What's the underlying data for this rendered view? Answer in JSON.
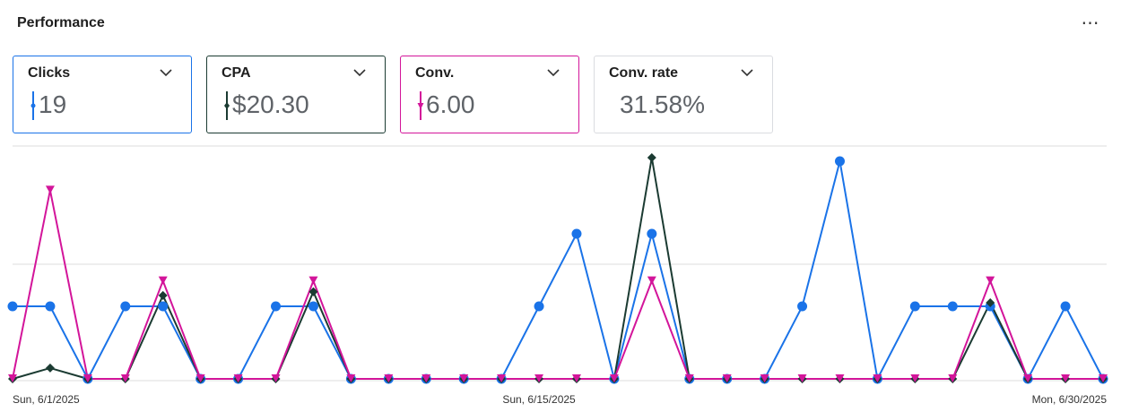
{
  "header": {
    "title": "Performance",
    "more_label": "⋯"
  },
  "cards": [
    {
      "label": "Clicks",
      "value": "19",
      "color": "#1a73e8"
    },
    {
      "label": "CPA",
      "value": "$20.30",
      "color": "#1b3b32"
    },
    {
      "label": "Conv.",
      "value": "6.00",
      "color": "#d3159a"
    },
    {
      "label": "Conv. rate",
      "value": "31.58%"
    }
  ],
  "chart_data": {
    "type": "line",
    "x": [
      "6/1",
      "6/2",
      "6/3",
      "6/4",
      "6/5",
      "6/6",
      "6/7",
      "6/8",
      "6/9",
      "6/10",
      "6/11",
      "6/12",
      "6/13",
      "6/14",
      "6/15",
      "6/16",
      "6/17",
      "6/18",
      "6/19",
      "6/20",
      "6/21",
      "6/22",
      "6/23",
      "6/24",
      "6/25",
      "6/26",
      "6/27",
      "6/28",
      "6/29",
      "6/30"
    ],
    "x_tick_labels": [
      {
        "index": 0,
        "label": "Sun, 6/1/2025"
      },
      {
        "index": 14,
        "label": "Sun, 6/15/2025"
      },
      {
        "index": 29,
        "label": "Mon, 6/30/2025"
      }
    ],
    "series": [
      {
        "name": "Clicks",
        "color": "#1a73e8",
        "marker": "circle",
        "values": [
          1,
          1,
          0,
          1,
          1,
          0,
          0,
          1,
          1,
          0,
          0,
          0,
          0,
          0,
          1,
          2,
          0,
          2,
          0,
          0,
          0,
          1,
          3,
          0,
          1,
          1,
          1,
          0,
          1,
          0
        ]
      },
      {
        "name": "CPA",
        "color": "#1b3b32",
        "marker": "diamond",
        "values": [
          0,
          0.15,
          0,
          0,
          1.15,
          0,
          0,
          0,
          1.2,
          0,
          0,
          0,
          0,
          0,
          0,
          0,
          0,
          3.05,
          0,
          0,
          0,
          0,
          0,
          0,
          0,
          0,
          1.05,
          0,
          0,
          0
        ]
      },
      {
        "name": "Conv.",
        "color": "#d3159a",
        "marker": "triangle",
        "values": [
          0,
          2.6,
          0,
          0,
          1.35,
          0,
          0,
          0,
          1.35,
          0,
          0,
          0,
          0,
          0,
          0,
          0,
          0,
          1.35,
          0,
          0,
          0,
          0,
          0,
          0,
          0,
          0,
          1.35,
          0,
          0,
          0
        ]
      }
    ],
    "grid": true
  }
}
